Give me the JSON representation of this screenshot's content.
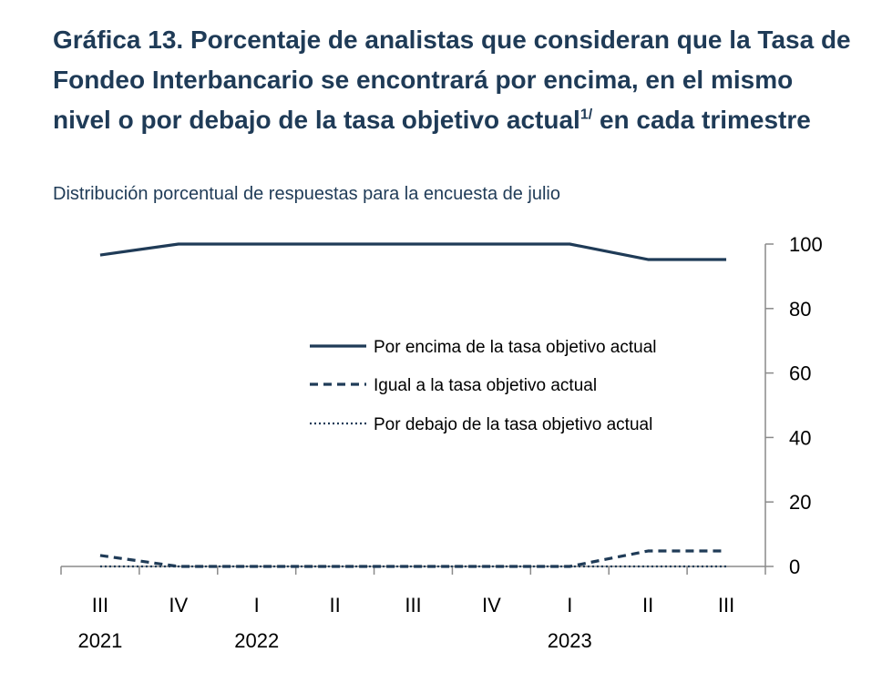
{
  "title": {
    "main": "Gráfica 13. Porcentaje de analistas que consideran que la Tasa de Fondeo Interbancario se encontrará por encima, en el mismo nivel o por debajo de la tasa objetivo actual",
    "superscript": "1/",
    "tail": "en cada trimestre"
  },
  "subtitle": "Distribución porcentual de respuestas para la encuesta de julio",
  "chart_data": {
    "type": "line",
    "categories": [
      "III",
      "IV",
      "I",
      "II",
      "III",
      "IV",
      "I",
      "II",
      "III"
    ],
    "years": [
      {
        "label": "2021",
        "at": 0
      },
      {
        "label": "2022",
        "at": 2
      },
      {
        "label": "2023",
        "at": 6
      }
    ],
    "ylim": [
      0,
      100
    ],
    "yticks": [
      0,
      20,
      40,
      60,
      80,
      100
    ],
    "y_axis_side": "right",
    "legend_placement": "center-right",
    "series": [
      {
        "name": "Por encima de la tasa objetivo actual",
        "style": "solid",
        "values": [
          96.6,
          100,
          100,
          100,
          100,
          100,
          100,
          95.2,
          95.2
        ]
      },
      {
        "name": "Igual a la tasa objetivo actual",
        "style": "dashed",
        "values": [
          3.4,
          0,
          0,
          0,
          0,
          0,
          0,
          4.8,
          4.8
        ]
      },
      {
        "name": "Por debajo de la tasa objetivo actual",
        "style": "dotted",
        "values": [
          0,
          0,
          0,
          0,
          0,
          0,
          0,
          0,
          0
        ]
      }
    ],
    "color": "#1f3b57"
  }
}
